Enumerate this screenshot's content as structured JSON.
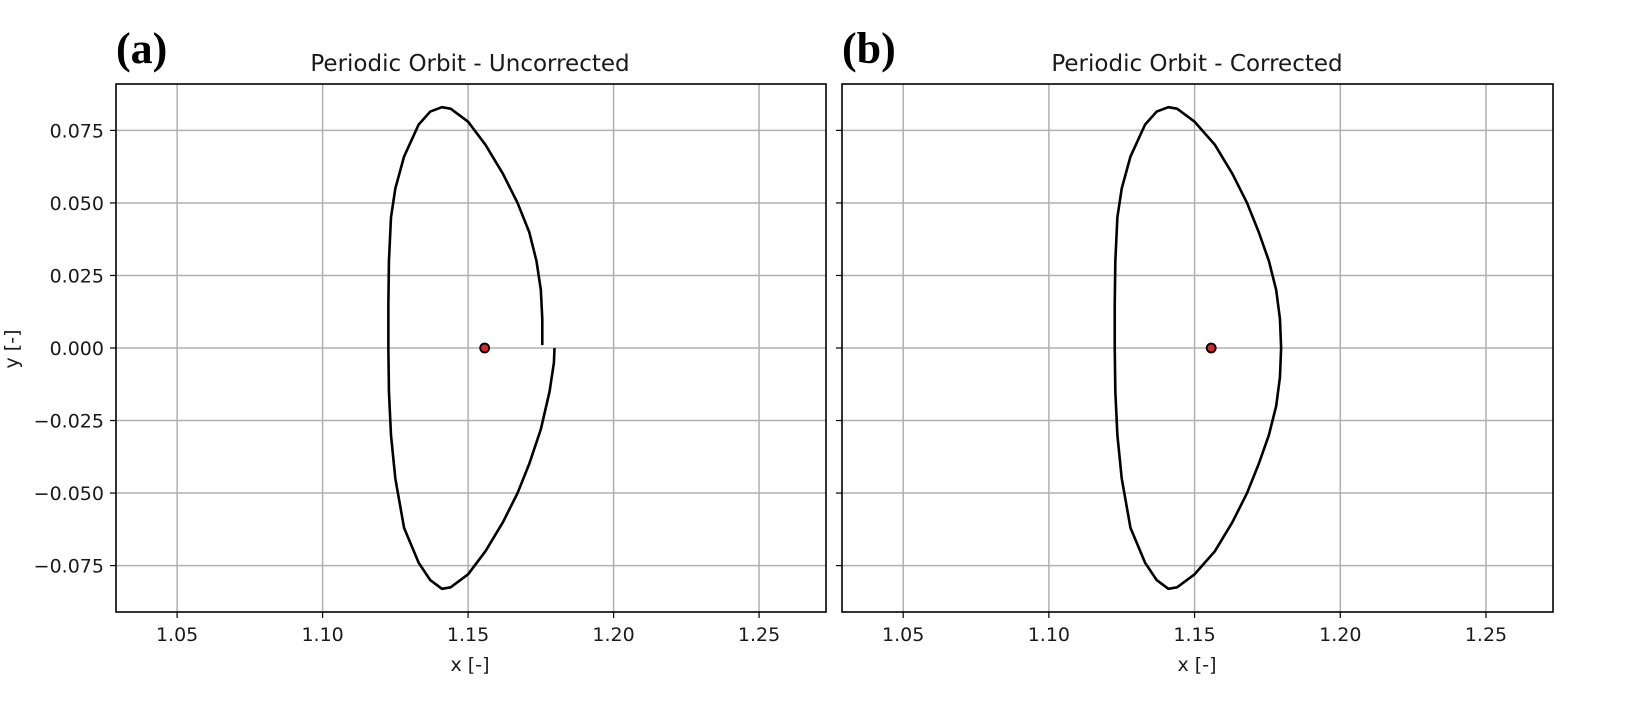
{
  "chart_data": [
    {
      "type": "line",
      "panel_label": "(a)",
      "title": "Periodic Orbit - Uncorrected",
      "xlabel": "x [-]",
      "ylabel": "y [-]",
      "xlim": [
        1.029,
        1.273
      ],
      "ylim": [
        -0.091,
        0.091
      ],
      "x_ticks": [
        1.05,
        1.1,
        1.15,
        1.2,
        1.25
      ],
      "x_tick_labels": [
        "1.05",
        "1.10",
        "1.15",
        "1.20",
        "1.25"
      ],
      "y_ticks": [
        0.075,
        0.05,
        0.025,
        0.0,
        -0.025,
        -0.05,
        -0.075
      ],
      "y_tick_labels": [
        "0.075",
        "0.050",
        "0.025",
        "0.000",
        "−0.025",
        "−0.050",
        "−0.075"
      ],
      "grid": true,
      "series": [
        {
          "color": "#000000",
          "x": [
            1.1755,
            1.1755,
            1.175,
            1.1735,
            1.171,
            1.167,
            1.162,
            1.156,
            1.15,
            1.144,
            1.141,
            1.137,
            1.133,
            1.128,
            1.125,
            1.1235,
            1.1228,
            1.1226,
            1.1226,
            1.1228,
            1.1235,
            1.125,
            1.128,
            1.133,
            1.137,
            1.141,
            1.144,
            1.15,
            1.156,
            1.162,
            1.167,
            1.171,
            1.175,
            1.178,
            1.1795,
            1.1797
          ],
          "y": [
            0.001,
            0.01,
            0.02,
            0.03,
            0.04,
            0.05,
            0.06,
            0.07,
            0.078,
            0.0825,
            0.083,
            0.0815,
            0.077,
            0.066,
            0.055,
            0.045,
            0.03,
            0.015,
            0.0,
            -0.015,
            -0.03,
            -0.045,
            -0.062,
            -0.074,
            -0.08,
            -0.083,
            -0.0825,
            -0.078,
            -0.07,
            -0.06,
            -0.05,
            -0.04,
            -0.028,
            -0.015,
            -0.005,
            0.0
          ]
        }
      ],
      "marker": {
        "x": 1.1557,
        "y": 0.0,
        "fill": "#d62728",
        "edge": "#000000"
      }
    },
    {
      "type": "line",
      "panel_label": "(b)",
      "title": "Periodic Orbit - Corrected",
      "xlabel": "x [-]",
      "ylabel": "",
      "xlim": [
        1.029,
        1.273
      ],
      "ylim": [
        -0.091,
        0.091
      ],
      "x_ticks": [
        1.05,
        1.1,
        1.15,
        1.2,
        1.25
      ],
      "x_tick_labels": [
        "1.05",
        "1.10",
        "1.15",
        "1.20",
        "1.25"
      ],
      "y_ticks": [
        0.075,
        0.05,
        0.025,
        0.0,
        -0.025,
        -0.05,
        -0.075
      ],
      "y_tick_labels": [],
      "grid": true,
      "series": [
        {
          "color": "#000000",
          "x": [
            1.1797,
            1.1793,
            1.178,
            1.1755,
            1.172,
            1.168,
            1.163,
            1.157,
            1.15,
            1.144,
            1.141,
            1.137,
            1.133,
            1.128,
            1.125,
            1.1235,
            1.1228,
            1.1226,
            1.1226,
            1.1228,
            1.1235,
            1.125,
            1.128,
            1.133,
            1.137,
            1.141,
            1.144,
            1.15,
            1.157,
            1.163,
            1.168,
            1.172,
            1.1755,
            1.178,
            1.1793,
            1.1797
          ],
          "y": [
            0.0,
            0.01,
            0.02,
            0.03,
            0.04,
            0.05,
            0.06,
            0.07,
            0.078,
            0.0825,
            0.083,
            0.0815,
            0.077,
            0.066,
            0.055,
            0.045,
            0.03,
            0.015,
            0.0,
            -0.015,
            -0.03,
            -0.045,
            -0.062,
            -0.074,
            -0.08,
            -0.083,
            -0.0825,
            -0.078,
            -0.07,
            -0.06,
            -0.05,
            -0.04,
            -0.03,
            -0.02,
            -0.01,
            0.0
          ]
        }
      ],
      "marker": {
        "x": 1.1557,
        "y": 0.0,
        "fill": "#d62728",
        "edge": "#000000"
      }
    }
  ]
}
